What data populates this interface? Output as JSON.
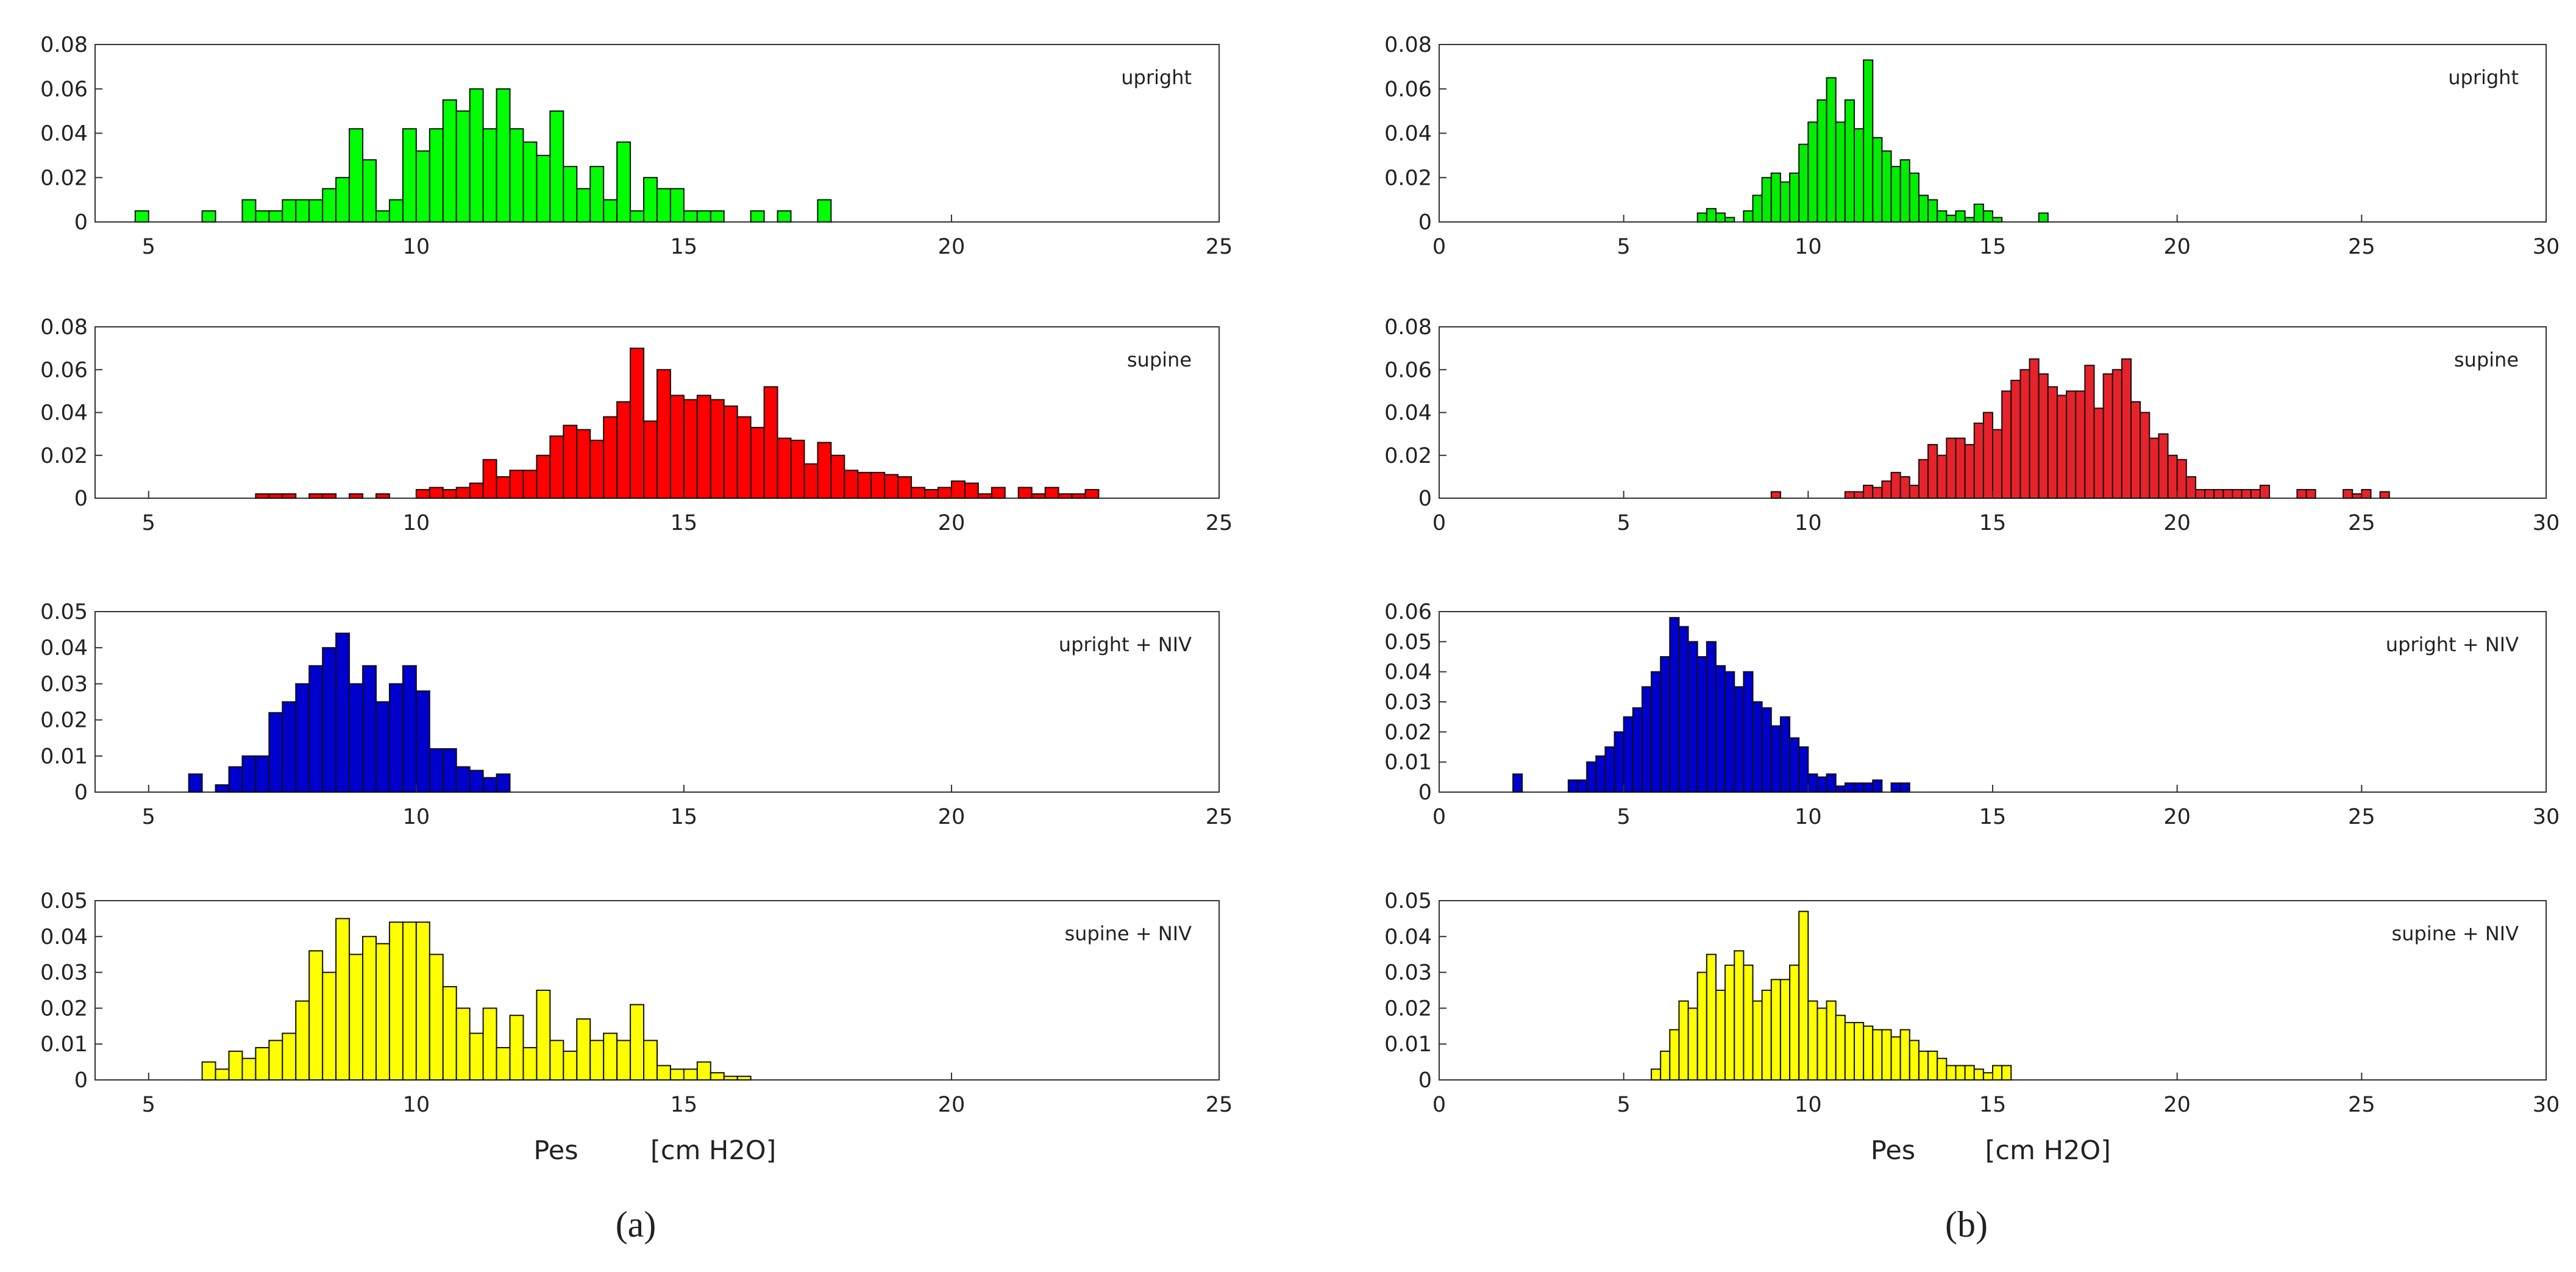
{
  "chart_data": [
    {
      "type": "histogram",
      "annotation": "upright",
      "color": "#00ff00",
      "xlim": [
        4,
        25
      ],
      "xticks": [
        5,
        10,
        15,
        20,
        25
      ],
      "ylim": [
        0,
        0.08
      ],
      "yticks": [
        0,
        0.02,
        0.04,
        0.06,
        0.08
      ],
      "bins": [
        4.75,
        5,
        5.25,
        5.5,
        5.75,
        6,
        6.25,
        6.5,
        6.75,
        7,
        7.25,
        7.5,
        7.75,
        8,
        8.25,
        8.5,
        8.75,
        9,
        9.25,
        9.5,
        9.75,
        10,
        10.25,
        10.5,
        10.75,
        11,
        11.25,
        11.5,
        11.75,
        12,
        12.25,
        12.5,
        12.75,
        13,
        13.25,
        13.5,
        13.75,
        14,
        14.25,
        14.5,
        14.75,
        15,
        15.25,
        15.5,
        15.75,
        16,
        16.25,
        16.5,
        16.75,
        17,
        17.25,
        17.5,
        17.75
      ],
      "counts": [
        0.005,
        0,
        0,
        0,
        0,
        0.005,
        0,
        0,
        0.01,
        0.005,
        0.005,
        0.01,
        0.01,
        0.01,
        0.015,
        0.02,
        0.042,
        0.028,
        0.005,
        0.01,
        0.042,
        0.032,
        0.042,
        0.055,
        0.05,
        0.06,
        0.042,
        0.06,
        0.042,
        0.036,
        0.03,
        0.05,
        0.025,
        0.015,
        0.025,
        0.01,
        0.036,
        0.005,
        0.02,
        0.015,
        0.015,
        0.005,
        0.005,
        0.005,
        0,
        0,
        0.005,
        0,
        0.005,
        0,
        0,
        0.01
      ]
    },
    {
      "type": "histogram",
      "annotation": "supine",
      "color": "#ff0000",
      "xlim": [
        4,
        25
      ],
      "xticks": [
        5,
        10,
        15,
        20,
        25
      ],
      "ylim": [
        0,
        0.08
      ],
      "yticks": [
        0,
        0.02,
        0.04,
        0.06,
        0.08
      ],
      "bins": [
        6.75,
        7,
        7.25,
        7.5,
        7.75,
        8,
        8.25,
        8.5,
        8.75,
        9,
        9.25,
        9.5,
        9.75,
        10,
        10.25,
        10.5,
        10.75,
        11,
        11.25,
        11.5,
        11.75,
        12,
        12.25,
        12.5,
        12.75,
        13,
        13.25,
        13.5,
        13.75,
        14,
        14.25,
        14.5,
        14.75,
        15,
        15.25,
        15.5,
        15.75,
        16,
        16.25,
        16.5,
        16.75,
        17,
        17.25,
        17.5,
        17.75,
        18,
        18.25,
        18.5,
        18.75,
        19,
        19.25,
        19.5,
        19.75,
        20,
        20.25,
        20.5,
        20.75,
        21,
        21.25,
        21.5,
        21.75,
        22,
        22.25,
        22.5,
        22.75
      ],
      "counts": [
        0,
        0.002,
        0.002,
        0.002,
        0,
        0.002,
        0.002,
        0,
        0.002,
        0,
        0.002,
        0,
        0,
        0.004,
        0.005,
        0.004,
        0.005,
        0.007,
        0.018,
        0.01,
        0.013,
        0.013,
        0.02,
        0.029,
        0.034,
        0.032,
        0.027,
        0.038,
        0.045,
        0.07,
        0.036,
        0.06,
        0.048,
        0.046,
        0.048,
        0.046,
        0.043,
        0.038,
        0.033,
        0.052,
        0.028,
        0.027,
        0.016,
        0.026,
        0.02,
        0.013,
        0.012,
        0.012,
        0.011,
        0.01,
        0.005,
        0.004,
        0.005,
        0.008,
        0.007,
        0.002,
        0.005,
        0,
        0.005,
        0.002,
        0.005,
        0.002,
        0.002,
        0.004
      ]
    },
    {
      "type": "histogram",
      "annotation": "upright + NIV",
      "color": "#0000cc",
      "xlim": [
        4,
        25
      ],
      "xticks": [
        5,
        10,
        15,
        20,
        25
      ],
      "ylim": [
        0,
        0.05
      ],
      "yticks": [
        0,
        0.01,
        0.02,
        0.03,
        0.04,
        0.05
      ],
      "bins": [
        5.75,
        6,
        6.25,
        6.5,
        6.75,
        7,
        7.25,
        7.5,
        7.75,
        8,
        8.25,
        8.5,
        8.75,
        9,
        9.25,
        9.5,
        9.75,
        10,
        10.25,
        10.5,
        10.75,
        11,
        11.25,
        11.5,
        11.75
      ],
      "counts": [
        0.005,
        0,
        0.002,
        0.007,
        0.01,
        0.01,
        0.022,
        0.025,
        0.03,
        0.035,
        0.04,
        0.044,
        0.03,
        0.035,
        0.025,
        0.03,
        0.035,
        0.028,
        0.012,
        0.012,
        0.007,
        0.006,
        0.004,
        0.005
      ]
    },
    {
      "type": "histogram",
      "annotation": "supine + NIV",
      "color": "#ffff00",
      "xlim": [
        4,
        25
      ],
      "xticks": [
        5,
        10,
        15,
        20,
        25
      ],
      "ylim": [
        0,
        0.05
      ],
      "yticks": [
        0,
        0.01,
        0.02,
        0.03,
        0.04,
        0.05
      ],
      "xlabel": "Pes",
      "xunit": "[cm H2O]",
      "bins": [
        6,
        6.25,
        6.5,
        6.75,
        7,
        7.25,
        7.5,
        7.75,
        8,
        8.25,
        8.5,
        8.75,
        9,
        9.25,
        9.5,
        9.75,
        10,
        10.25,
        10.5,
        10.75,
        11,
        11.25,
        11.5,
        11.75,
        12,
        12.25,
        12.5,
        12.75,
        13,
        13.25,
        13.5,
        13.75,
        14,
        14.25,
        14.5,
        14.75,
        15,
        15.25,
        15.5,
        15.75,
        16,
        16.25
      ],
      "counts": [
        0.005,
        0.003,
        0.008,
        0.006,
        0.009,
        0.011,
        0.013,
        0.022,
        0.036,
        0.03,
        0.045,
        0.035,
        0.04,
        0.038,
        0.044,
        0.044,
        0.044,
        0.035,
        0.026,
        0.02,
        0.013,
        0.02,
        0.009,
        0.018,
        0.009,
        0.025,
        0.011,
        0.008,
        0.017,
        0.011,
        0.013,
        0.011,
        0.021,
        0.011,
        0.004,
        0.003,
        0.003,
        0.005,
        0.002,
        0.001,
        0.001
      ]
    },
    {
      "type": "histogram",
      "annotation": "upright",
      "color": "#00ee00",
      "xlim": [
        0,
        30
      ],
      "xticks": [
        0,
        5,
        10,
        15,
        20,
        25,
        30
      ],
      "ylim": [
        0,
        0.08
      ],
      "yticks": [
        0,
        0.02,
        0.04,
        0.06,
        0.08
      ],
      "bins": [
        6.75,
        7,
        7.25,
        7.5,
        7.75,
        8,
        8.25,
        8.5,
        8.75,
        9,
        9.25,
        9.5,
        9.75,
        10,
        10.25,
        10.5,
        10.75,
        11,
        11.25,
        11.5,
        11.75,
        12,
        12.25,
        12.5,
        12.75,
        13,
        13.25,
        13.5,
        13.75,
        14,
        14.25,
        14.5,
        14.75,
        15,
        15.25,
        15.5,
        15.75,
        16,
        16.25,
        16.5
      ],
      "counts": [
        0,
        0.004,
        0.006,
        0.004,
        0.002,
        0,
        0.005,
        0.012,
        0.02,
        0.022,
        0.018,
        0.022,
        0.035,
        0.045,
        0.055,
        0.065,
        0.045,
        0.055,
        0.042,
        0.073,
        0.038,
        0.032,
        0.025,
        0.028,
        0.022,
        0.012,
        0.01,
        0.005,
        0.003,
        0.005,
        0.002,
        0.008,
        0.005,
        0.002,
        0,
        0,
        0,
        0,
        0.004
      ]
    },
    {
      "type": "histogram",
      "annotation": "supine",
      "color": "#e8222a",
      "xlim": [
        0,
        30
      ],
      "xticks": [
        0,
        5,
        10,
        15,
        20,
        25,
        30
      ],
      "ylim": [
        0,
        0.08
      ],
      "yticks": [
        0,
        0.02,
        0.04,
        0.06,
        0.08
      ],
      "bins": [
        9,
        9.25,
        9.5,
        9.75,
        10,
        10.25,
        10.5,
        10.75,
        11,
        11.25,
        11.5,
        11.75,
        12,
        12.25,
        12.5,
        12.75,
        13,
        13.25,
        13.5,
        13.75,
        14,
        14.25,
        14.5,
        14.75,
        15,
        15.25,
        15.5,
        15.75,
        16,
        16.25,
        16.5,
        16.75,
        17,
        17.25,
        17.5,
        17.75,
        18,
        18.25,
        18.5,
        18.75,
        19,
        19.25,
        19.5,
        19.75,
        20,
        20.25,
        20.5,
        20.75,
        21,
        21.25,
        21.5,
        21.75,
        22,
        22.25,
        22.5,
        22.75,
        23,
        23.25,
        23.5,
        23.75,
        24,
        24.25,
        24.5,
        24.75,
        25,
        25.25,
        25.5,
        25.75
      ],
      "counts": [
        0.003,
        0,
        0,
        0,
        0,
        0,
        0,
        0,
        0.003,
        0.003,
        0.006,
        0.005,
        0.008,
        0.012,
        0.01,
        0.006,
        0.018,
        0.025,
        0.02,
        0.028,
        0.028,
        0.025,
        0.035,
        0.04,
        0.032,
        0.05,
        0.055,
        0.06,
        0.065,
        0.058,
        0.052,
        0.048,
        0.05,
        0.05,
        0.062,
        0.042,
        0.058,
        0.06,
        0.065,
        0.045,
        0.04,
        0.028,
        0.03,
        0.02,
        0.018,
        0.01,
        0.004,
        0.004,
        0.004,
        0.004,
        0.004,
        0.004,
        0.004,
        0.006,
        0,
        0,
        0,
        0.004,
        0.004,
        0,
        0,
        0,
        0.004,
        0.002,
        0.004,
        0,
        0.003
      ]
    },
    {
      "type": "histogram",
      "annotation": "upright + NIV",
      "color": "#0000cc",
      "xlim": [
        0,
        30
      ],
      "xticks": [
        0,
        5,
        10,
        15,
        20,
        25,
        30
      ],
      "ylim": [
        0,
        0.06
      ],
      "yticks": [
        0,
        0.01,
        0.02,
        0.03,
        0.04,
        0.05,
        0.06
      ],
      "bins": [
        2,
        2.25,
        2.5,
        2.75,
        3,
        3.25,
        3.5,
        3.75,
        4,
        4.25,
        4.5,
        4.75,
        5,
        5.25,
        5.5,
        5.75,
        6,
        6.25,
        6.5,
        6.75,
        7,
        7.25,
        7.5,
        7.75,
        8,
        8.25,
        8.5,
        8.75,
        9,
        9.25,
        9.5,
        9.75,
        10,
        10.25,
        10.5,
        10.75,
        11,
        11.25,
        11.5,
        11.75,
        12,
        12.25,
        12.5,
        12.75
      ],
      "counts": [
        0.006,
        0,
        0,
        0,
        0,
        0,
        0.004,
        0.004,
        0.01,
        0.012,
        0.015,
        0.02,
        0.025,
        0.028,
        0.035,
        0.04,
        0.045,
        0.058,
        0.055,
        0.05,
        0.045,
        0.05,
        0.042,
        0.04,
        0.035,
        0.04,
        0.03,
        0.028,
        0.022,
        0.025,
        0.018,
        0.015,
        0.006,
        0.005,
        0.006,
        0.002,
        0.003,
        0.003,
        0.003,
        0.004,
        0,
        0.003,
        0.003
      ]
    },
    {
      "type": "histogram",
      "annotation": "supine + NIV",
      "color": "#ffff00",
      "xlim": [
        0,
        30
      ],
      "xticks": [
        0,
        5,
        10,
        15,
        20,
        25,
        30
      ],
      "ylim": [
        0,
        0.05
      ],
      "yticks": [
        0,
        0.01,
        0.02,
        0.03,
        0.04,
        0.05
      ],
      "xlabel": "Pes",
      "xunit": "[cm H2O]",
      "bins": [
        5.75,
        6,
        6.25,
        6.5,
        6.75,
        7,
        7.25,
        7.5,
        7.75,
        8,
        8.25,
        8.5,
        8.75,
        9,
        9.25,
        9.5,
        9.75,
        10,
        10.25,
        10.5,
        10.75,
        11,
        11.25,
        11.5,
        11.75,
        12,
        12.25,
        12.5,
        12.75,
        13,
        13.25,
        13.5,
        13.75,
        14,
        14.25,
        14.5,
        14.75,
        15,
        15.25,
        15.5
      ],
      "counts": [
        0.003,
        0.008,
        0.014,
        0.022,
        0.02,
        0.03,
        0.035,
        0.025,
        0.032,
        0.036,
        0.032,
        0.022,
        0.025,
        0.028,
        0.028,
        0.032,
        0.047,
        0.022,
        0.02,
        0.022,
        0.018,
        0.016,
        0.016,
        0.015,
        0.014,
        0.014,
        0.012,
        0.014,
        0.011,
        0.008,
        0.008,
        0.006,
        0.004,
        0.004,
        0.004,
        0.003,
        0.002,
        0.004,
        0.004
      ]
    }
  ],
  "captions": [
    "(a)",
    "(b)"
  ]
}
